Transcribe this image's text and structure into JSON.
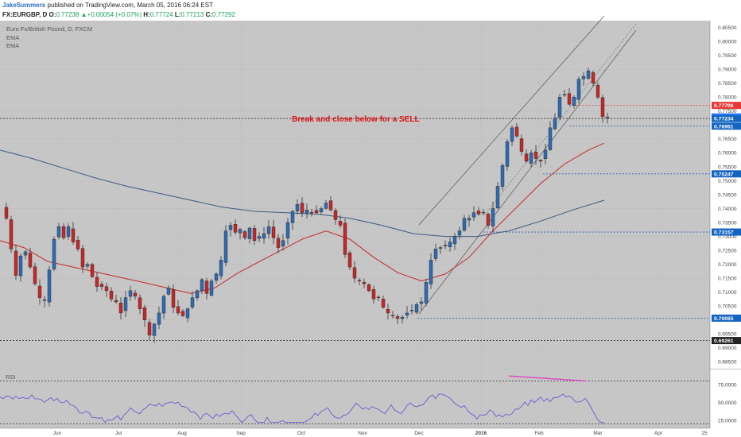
{
  "header": {
    "author": "JakeSummers",
    "published_text": "published on TradingView.com, March 05, 2016 06:24 EST",
    "symbol": "FX:EURGBP, D",
    "o_label": "O:",
    "o_value": "0.77238",
    "change": "+0.00054 (+0.07%)",
    "h_label": "H:",
    "h_value": "0.77724",
    "l_label": "L:",
    "l_value": "0.77213",
    "c_label": "C:",
    "c_value": "0.77292",
    "last_price": "0.77292"
  },
  "legend": {
    "instrument": "Euro Fx/British Pound, D, FXCM",
    "ema1": "EMA",
    "ema2": "EMA"
  },
  "annotation": "Break and close below for a SELL",
  "rsi_label": "RSI",
  "colors": {
    "bull": "#2e6bb3",
    "bear": "#c62828",
    "ema_fast": "#c62828",
    "ema_slow": "#3a5a80",
    "rsi": "#5b4fd6",
    "divergence": "#e040c8",
    "annotation": "#e01010",
    "panel_bg": "#c6c6c6"
  },
  "chart_data": [
    {
      "type": "candlestick",
      "title": "Euro Fx/British Pound, D, FXCM",
      "x_tick_labels": [
        "Jun",
        "Jul",
        "Aug",
        "Sep",
        "Oct",
        "Nov",
        "Dec",
        "2016",
        "Feb",
        "Mar",
        "Apr",
        "25"
      ],
      "y_tick_labels": [
        "0.80500",
        "0.80000",
        "0.79500",
        "0.79000",
        "0.78500",
        "0.78000",
        "0.77500",
        "0.77000",
        "0.76500",
        "0.76000",
        "0.75500",
        "0.75000",
        "0.74500",
        "0.74000",
        "0.73500",
        "0.73000",
        "0.72500",
        "0.72000",
        "0.71500",
        "0.71000",
        "0.70500",
        "0.70000",
        "0.69500",
        "0.69000",
        "0.68500"
      ],
      "ylim": [
        0.6825,
        0.8075
      ],
      "price_labels": [
        {
          "value": "0.77706",
          "kind": "resistance",
          "color": "#e53935"
        },
        {
          "value": "0.77292",
          "kind": "last",
          "color": "#2979ff"
        },
        {
          "value": "0.77234",
          "kind": "support",
          "color": "#1565c0"
        },
        {
          "value": "0.76961",
          "kind": "support",
          "color": "#1565c0"
        },
        {
          "value": "0.75247",
          "kind": "support",
          "color": "#1565c0"
        },
        {
          "value": "0.73157",
          "kind": "support",
          "color": "#1565c0"
        },
        {
          "value": "0.70065",
          "kind": "support",
          "color": "#1565c0"
        },
        {
          "value": "0.69261",
          "kind": "support",
          "color": "#222222"
        }
      ],
      "horizontal_levels": [
        0.77706,
        0.77234,
        0.76961,
        0.75247,
        0.73157,
        0.70065,
        0.69261
      ],
      "series": [
        {
          "name": "Euro Fx/British Pound, D, FXCM",
          "kind": "price"
        },
        {
          "name": "EMA",
          "kind": "ema_fast"
        },
        {
          "name": "EMA",
          "kind": "ema_slow"
        }
      ]
    },
    {
      "type": "line",
      "title": "RSI",
      "y_tick_labels": [
        "75.0000",
        "50.0000",
        "25.0000"
      ],
      "ylim": [
        15,
        95
      ],
      "levels": [
        80,
        20
      ]
    }
  ]
}
